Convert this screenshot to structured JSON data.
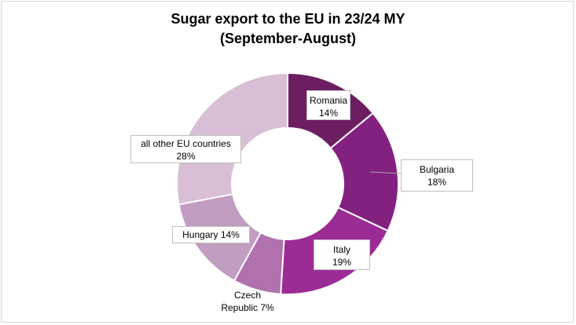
{
  "chart_data": {
    "type": "pie",
    "title": "Sugar export to the EU in 23/24 MY",
    "subtitle": "(September-August)",
    "donut": true,
    "slices": [
      {
        "name": "Romania",
        "value": 14,
        "label": "Romania\n14%",
        "color": "#6d1e62"
      },
      {
        "name": "Bulgaria",
        "value": 18,
        "label": "Bulgaria\n18%",
        "color": "#832181"
      },
      {
        "name": "Italy",
        "value": 19,
        "label": "Italy\n19%",
        "color": "#9b2b95"
      },
      {
        "name": "Czech Republic",
        "value": 7,
        "label": "Czech\nRepublic 7%",
        "color": "#b170ae"
      },
      {
        "name": "Hungary",
        "value": 14,
        "label": "Hungary 14%",
        "color": "#c29dc2"
      },
      {
        "name": "all other EU countries",
        "value": 28,
        "label": "all other EU countries\n28%",
        "color": "#d8bfd5"
      }
    ]
  }
}
